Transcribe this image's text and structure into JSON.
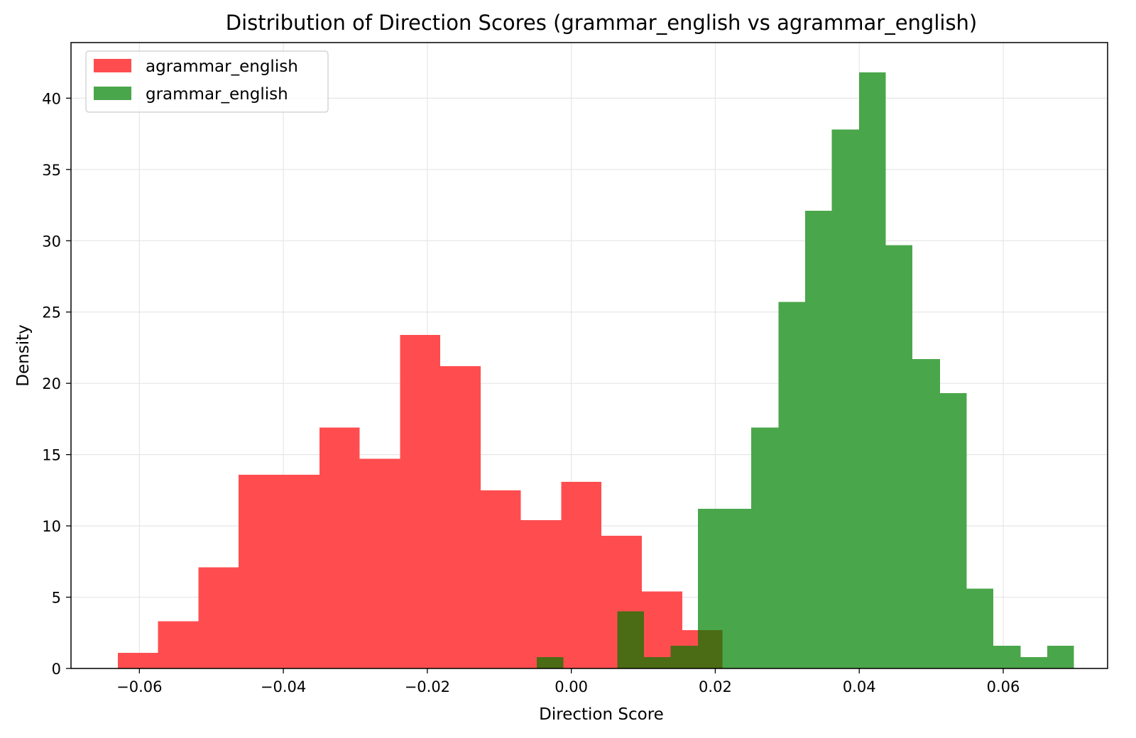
{
  "chart_data": {
    "type": "histogram",
    "title": "Distribution of Direction Scores (grammar_english vs agrammar_english)",
    "xlabel": "Direction Score",
    "ylabel": "Density",
    "xlim": [
      -0.0695,
      0.0745
    ],
    "ylim": [
      0,
      43.9
    ],
    "x_ticks": [
      -0.06,
      -0.04,
      -0.02,
      0.0,
      0.02,
      0.04,
      0.06
    ],
    "x_tick_labels": [
      "−0.06",
      "−0.04",
      "−0.02",
      "0.00",
      "0.02",
      "0.04",
      "0.06"
    ],
    "y_ticks": [
      0,
      5,
      10,
      15,
      20,
      25,
      30,
      35,
      40
    ],
    "y_tick_labels": [
      "0",
      "5",
      "10",
      "15",
      "20",
      "25",
      "30",
      "35",
      "40"
    ],
    "grid": true,
    "legend_position": "top-left",
    "overlap_color": "#4b6b14",
    "series": [
      {
        "name": "agrammar_english",
        "color": "#ff4d4f",
        "bins": [
          {
            "x0": -0.063,
            "x1": -0.0574,
            "y": 1.1
          },
          {
            "x0": -0.0574,
            "x1": -0.0518,
            "y": 3.3
          },
          {
            "x0": -0.0518,
            "x1": -0.0462,
            "y": 7.1
          },
          {
            "x0": -0.0462,
            "x1": -0.0406,
            "y": 13.6
          },
          {
            "x0": -0.0406,
            "x1": -0.035,
            "y": 13.6
          },
          {
            "x0": -0.035,
            "x1": -0.0294,
            "y": 16.9
          },
          {
            "x0": -0.0294,
            "x1": -0.0238,
            "y": 14.7
          },
          {
            "x0": -0.0238,
            "x1": -0.0182,
            "y": 23.4
          },
          {
            "x0": -0.0182,
            "x1": -0.0126,
            "y": 21.2
          },
          {
            "x0": -0.0126,
            "x1": -0.007,
            "y": 12.5
          },
          {
            "x0": -0.007,
            "x1": -0.0014,
            "y": 10.4
          },
          {
            "x0": -0.0014,
            "x1": 0.0042,
            "y": 13.1
          },
          {
            "x0": 0.0042,
            "x1": 0.0098,
            "y": 9.3
          },
          {
            "x0": 0.0098,
            "x1": 0.0154,
            "y": 5.4
          },
          {
            "x0": 0.0154,
            "x1": 0.021,
            "y": 2.7
          }
        ]
      },
      {
        "name": "grammar_english",
        "color": "#4aa64a",
        "bins": [
          {
            "x0": -0.0048,
            "x1": -0.0011,
            "y": 0.8
          },
          {
            "x0": -0.0011,
            "x1": 0.0026,
            "y": 0
          },
          {
            "x0": 0.0026,
            "x1": 0.0064,
            "y": 0
          },
          {
            "x0": 0.0064,
            "x1": 0.0101,
            "y": 4.0
          },
          {
            "x0": 0.0101,
            "x1": 0.0138,
            "y": 0.8
          },
          {
            "x0": 0.0138,
            "x1": 0.0176,
            "y": 1.6
          },
          {
            "x0": 0.0176,
            "x1": 0.0213,
            "y": 11.2
          },
          {
            "x0": 0.0213,
            "x1": 0.025,
            "y": 11.2
          },
          {
            "x0": 0.025,
            "x1": 0.0288,
            "y": 16.9
          },
          {
            "x0": 0.0288,
            "x1": 0.0325,
            "y": 25.7
          },
          {
            "x0": 0.0325,
            "x1": 0.0362,
            "y": 32.1
          },
          {
            "x0": 0.0362,
            "x1": 0.04,
            "y": 37.8
          },
          {
            "x0": 0.04,
            "x1": 0.0437,
            "y": 41.8
          },
          {
            "x0": 0.0437,
            "x1": 0.0474,
            "y": 29.7
          },
          {
            "x0": 0.0474,
            "x1": 0.0512,
            "y": 21.7
          },
          {
            "x0": 0.0512,
            "x1": 0.0549,
            "y": 19.3
          },
          {
            "x0": 0.0549,
            "x1": 0.0586,
            "y": 5.6
          },
          {
            "x0": 0.0586,
            "x1": 0.0624,
            "y": 1.6
          },
          {
            "x0": 0.0624,
            "x1": 0.0661,
            "y": 0.8
          },
          {
            "x0": 0.0661,
            "x1": 0.0698,
            "y": 1.6
          }
        ]
      }
    ]
  }
}
